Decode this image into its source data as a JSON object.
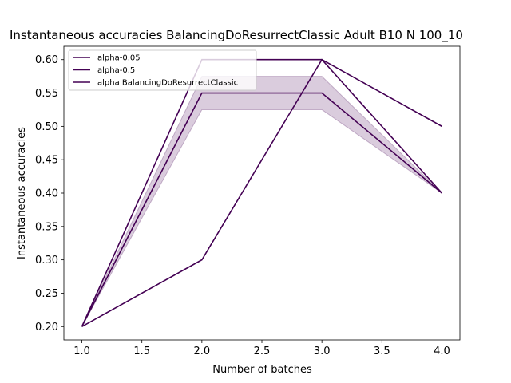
{
  "chart_data": {
    "type": "line",
    "title": "Instantaneous accuracies BalancingDoResurrectClassic Adult B10 N 100_10",
    "xlabel": "Number of batches",
    "ylabel": "Instantaneous accuracies",
    "xlim": [
      0.85,
      4.15
    ],
    "ylim": [
      0.18,
      0.62
    ],
    "xticks": [
      1.0,
      1.5,
      2.0,
      2.5,
      3.0,
      3.5,
      4.0
    ],
    "xtick_labels": [
      "1.0",
      "1.5",
      "2.0",
      "2.5",
      "3.0",
      "3.5",
      "4.0"
    ],
    "yticks": [
      0.2,
      0.25,
      0.3,
      0.35,
      0.4,
      0.45,
      0.5,
      0.55,
      0.6
    ],
    "ytick_labels": [
      "0.20",
      "0.25",
      "0.30",
      "0.35",
      "0.40",
      "0.45",
      "0.50",
      "0.55",
      "0.60"
    ],
    "grid": false,
    "legend_position": "top-left",
    "series": [
      {
        "name": "alpha-0.05",
        "color": "#440154",
        "x": [
          1,
          2,
          3,
          4
        ],
        "y": [
          0.2,
          0.3,
          0.6,
          0.5
        ]
      },
      {
        "name": "alpha-0.5",
        "color": "#440154",
        "x": [
          1,
          2,
          3,
          4
        ],
        "y": [
          0.2,
          0.6,
          0.6,
          0.4
        ]
      },
      {
        "name": "alpha BalancingDoResurrectClassic",
        "color": "#440154",
        "x": [
          1,
          2,
          3,
          4
        ],
        "y": [
          0.2,
          0.55,
          0.55,
          0.4
        ],
        "band_lower": [
          0.2,
          0.525,
          0.525,
          0.4
        ],
        "band_upper": [
          0.2,
          0.575,
          0.575,
          0.4
        ]
      }
    ],
    "band_color": "#440154",
    "band_opacity": 0.2
  }
}
